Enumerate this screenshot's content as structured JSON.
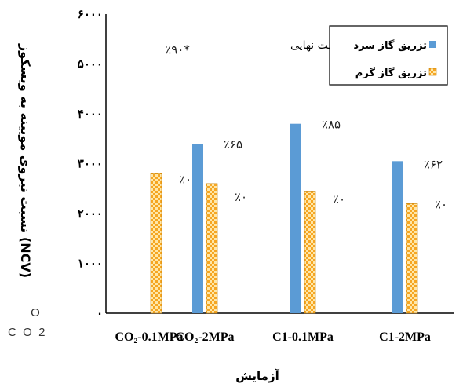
{
  "chart_data": {
    "type": "bar",
    "ylabel": "نسبت نیروی مویینه به ویسکوز (NCV)",
    "xlabel": "آزمایش",
    "ylim": [
      0,
      6000
    ],
    "y_tick_labels": [
      "۰",
      "۱۰۰۰",
      "۲۰۰۰",
      "۳۰۰۰",
      "۴۰۰۰",
      "۵۰۰۰",
      "۶۰۰۰"
    ],
    "categories": [
      "CO₂-0.1MPa",
      "CO₂-2MPa",
      "C1-0.1MPa",
      "C1-2MPa"
    ],
    "series": [
      {
        "name": "تزریق گاز سرد",
        "color": "#5B9BD5",
        "pattern": "solid",
        "values": [
          0,
          3400,
          3800,
          3050
        ]
      },
      {
        "name": "تزریق گاز گرم",
        "color": "#F5A623",
        "pattern": "checker",
        "values": [
          2800,
          2600,
          2450,
          2200
        ]
      }
    ],
    "annotations": [
      {
        "text": "٪۹۰*",
        "category": 0,
        "series": 0,
        "y": 5300
      },
      {
        "text": "٪۰",
        "category": 0,
        "series": 1,
        "y": 2700
      },
      {
        "text": "٪۶۵",
        "category": 1,
        "series": 0,
        "y": 3400
      },
      {
        "text": "٪۰",
        "category": 1,
        "series": 1,
        "y": 2350
      },
      {
        "text": "٪۸۵",
        "category": 2,
        "series": 0,
        "y": 3800
      },
      {
        "text": "٪۰",
        "category": 2,
        "series": 1,
        "y": 2300
      },
      {
        "text": "٪۶۲",
        "category": 3,
        "series": 0,
        "y": 3000
      },
      {
        "text": "٪۰",
        "category": 3,
        "series": 1,
        "y": 2200
      }
    ],
    "note": "* بازیافت نهایی",
    "legend_position": "top-right",
    "grid": false
  },
  "stray_text": {
    "left_stack": [
      "O",
      "C  O  2"
    ]
  }
}
